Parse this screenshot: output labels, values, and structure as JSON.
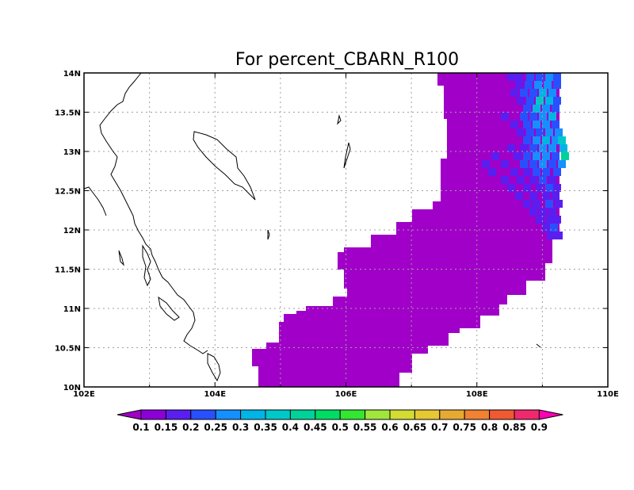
{
  "title": "For percent_CBARN_R100",
  "map": {
    "lon_range": [
      102,
      110
    ],
    "lat_range": [
      10,
      14
    ],
    "x_ticks": [
      "102E",
      "104E",
      "106E",
      "108E",
      "110E"
    ],
    "y_ticks": [
      "10N",
      "10.5N",
      "11N",
      "11.5N",
      "12N",
      "12.5N",
      "13N",
      "13.5N",
      "14N"
    ],
    "grid": true
  },
  "colorbar": {
    "levels": [
      "0.1",
      "0.15",
      "0.2",
      "0.25",
      "0.3",
      "0.35",
      "0.4",
      "0.45",
      "0.5",
      "0.55",
      "0.6",
      "0.65",
      "0.7",
      "0.75",
      "0.8",
      "0.85",
      "0.9"
    ],
    "colors": [
      "#a000c8",
      "#8c00d8",
      "#5a1ef0",
      "#2850ff",
      "#1490ff",
      "#00b4e6",
      "#00c8c8",
      "#00d29a",
      "#00dc64",
      "#32e632",
      "#a0e63c",
      "#d2dc32",
      "#e6c832",
      "#e6aa32",
      "#f08232",
      "#f05a32",
      "#f0286e",
      "#ff00b4"
    ]
  }
}
